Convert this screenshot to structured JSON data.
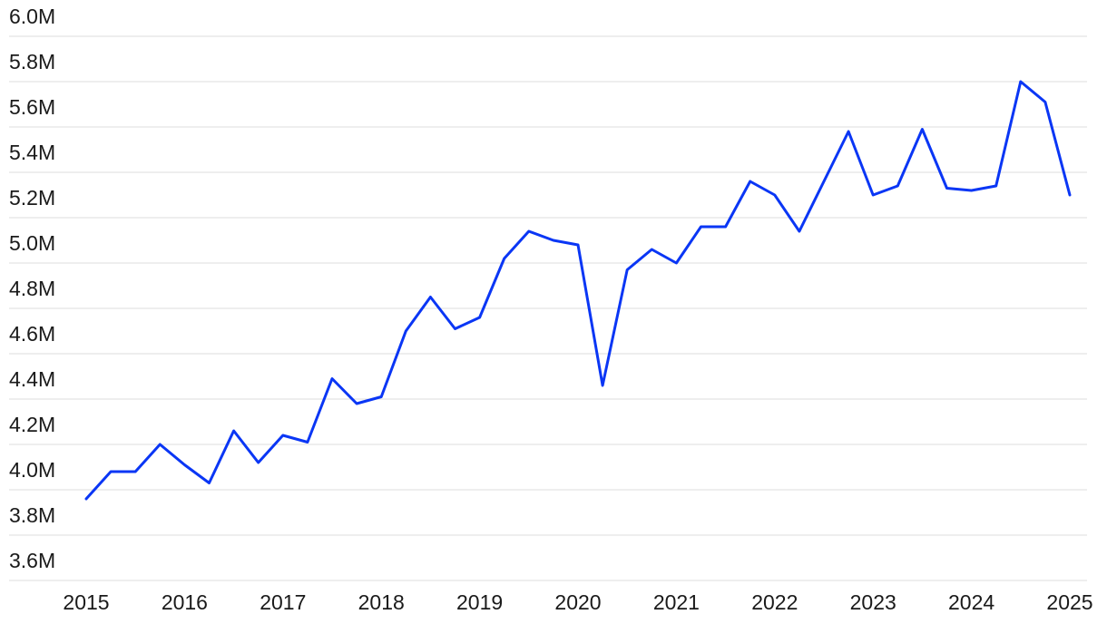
{
  "chart_data": {
    "type": "line",
    "x": [
      2015,
      2015.25,
      2015.5,
      2015.75,
      2016,
      2016.25,
      2016.5,
      2016.75,
      2017,
      2017.25,
      2017.5,
      2017.75,
      2018,
      2018.25,
      2018.5,
      2018.75,
      2019,
      2019.25,
      2019.5,
      2019.75,
      2020,
      2020.25,
      2020.5,
      2020.75,
      2021,
      2021.25,
      2021.5,
      2021.75,
      2022,
      2022.25,
      2022.5,
      2022.75,
      2023,
      2023.25,
      2023.5,
      2023.75,
      2024,
      2024.25,
      2024.5,
      2024.75,
      2025
    ],
    "series": [
      {
        "color": "#0a36f5",
        "values": [
          3.96,
          4.08,
          4.08,
          4.2,
          4.11,
          4.03,
          4.26,
          4.12,
          4.24,
          4.21,
          4.49,
          4.38,
          4.41,
          4.7,
          4.85,
          4.71,
          4.76,
          5.02,
          5.14,
          5.1,
          5.08,
          4.46,
          4.97,
          5.06,
          5.0,
          5.16,
          5.16,
          5.36,
          5.3,
          5.14,
          5.36,
          5.58,
          5.3,
          5.34,
          5.59,
          5.33,
          5.32,
          5.34,
          5.8,
          5.71,
          5.3
        ]
      }
    ],
    "xlim": [
      2015,
      2025
    ],
    "xticks": [
      2015,
      2016,
      2017,
      2018,
      2019,
      2020,
      2021,
      2022,
      2023,
      2024,
      2025
    ],
    "ylim": [
      3.6,
      6.0
    ],
    "yticks": [
      {
        "value": 3.6,
        "label": "3.6M"
      },
      {
        "value": 3.8,
        "label": "3.8M"
      },
      {
        "value": 4.0,
        "label": "4.0M"
      },
      {
        "value": 4.2,
        "label": "4.2M"
      },
      {
        "value": 4.4,
        "label": "4.4M"
      },
      {
        "value": 4.6,
        "label": "4.6M"
      },
      {
        "value": 4.8,
        "label": "4.8M"
      },
      {
        "value": 5.0,
        "label": "5.0M"
      },
      {
        "value": 5.2,
        "label": "5.2M"
      },
      {
        "value": 5.4,
        "label": "5.4M"
      },
      {
        "value": 5.6,
        "label": "5.6M"
      },
      {
        "value": 5.8,
        "label": "5.8M"
      },
      {
        "value": 6.0,
        "label": "6.0M"
      }
    ],
    "grid": true
  }
}
